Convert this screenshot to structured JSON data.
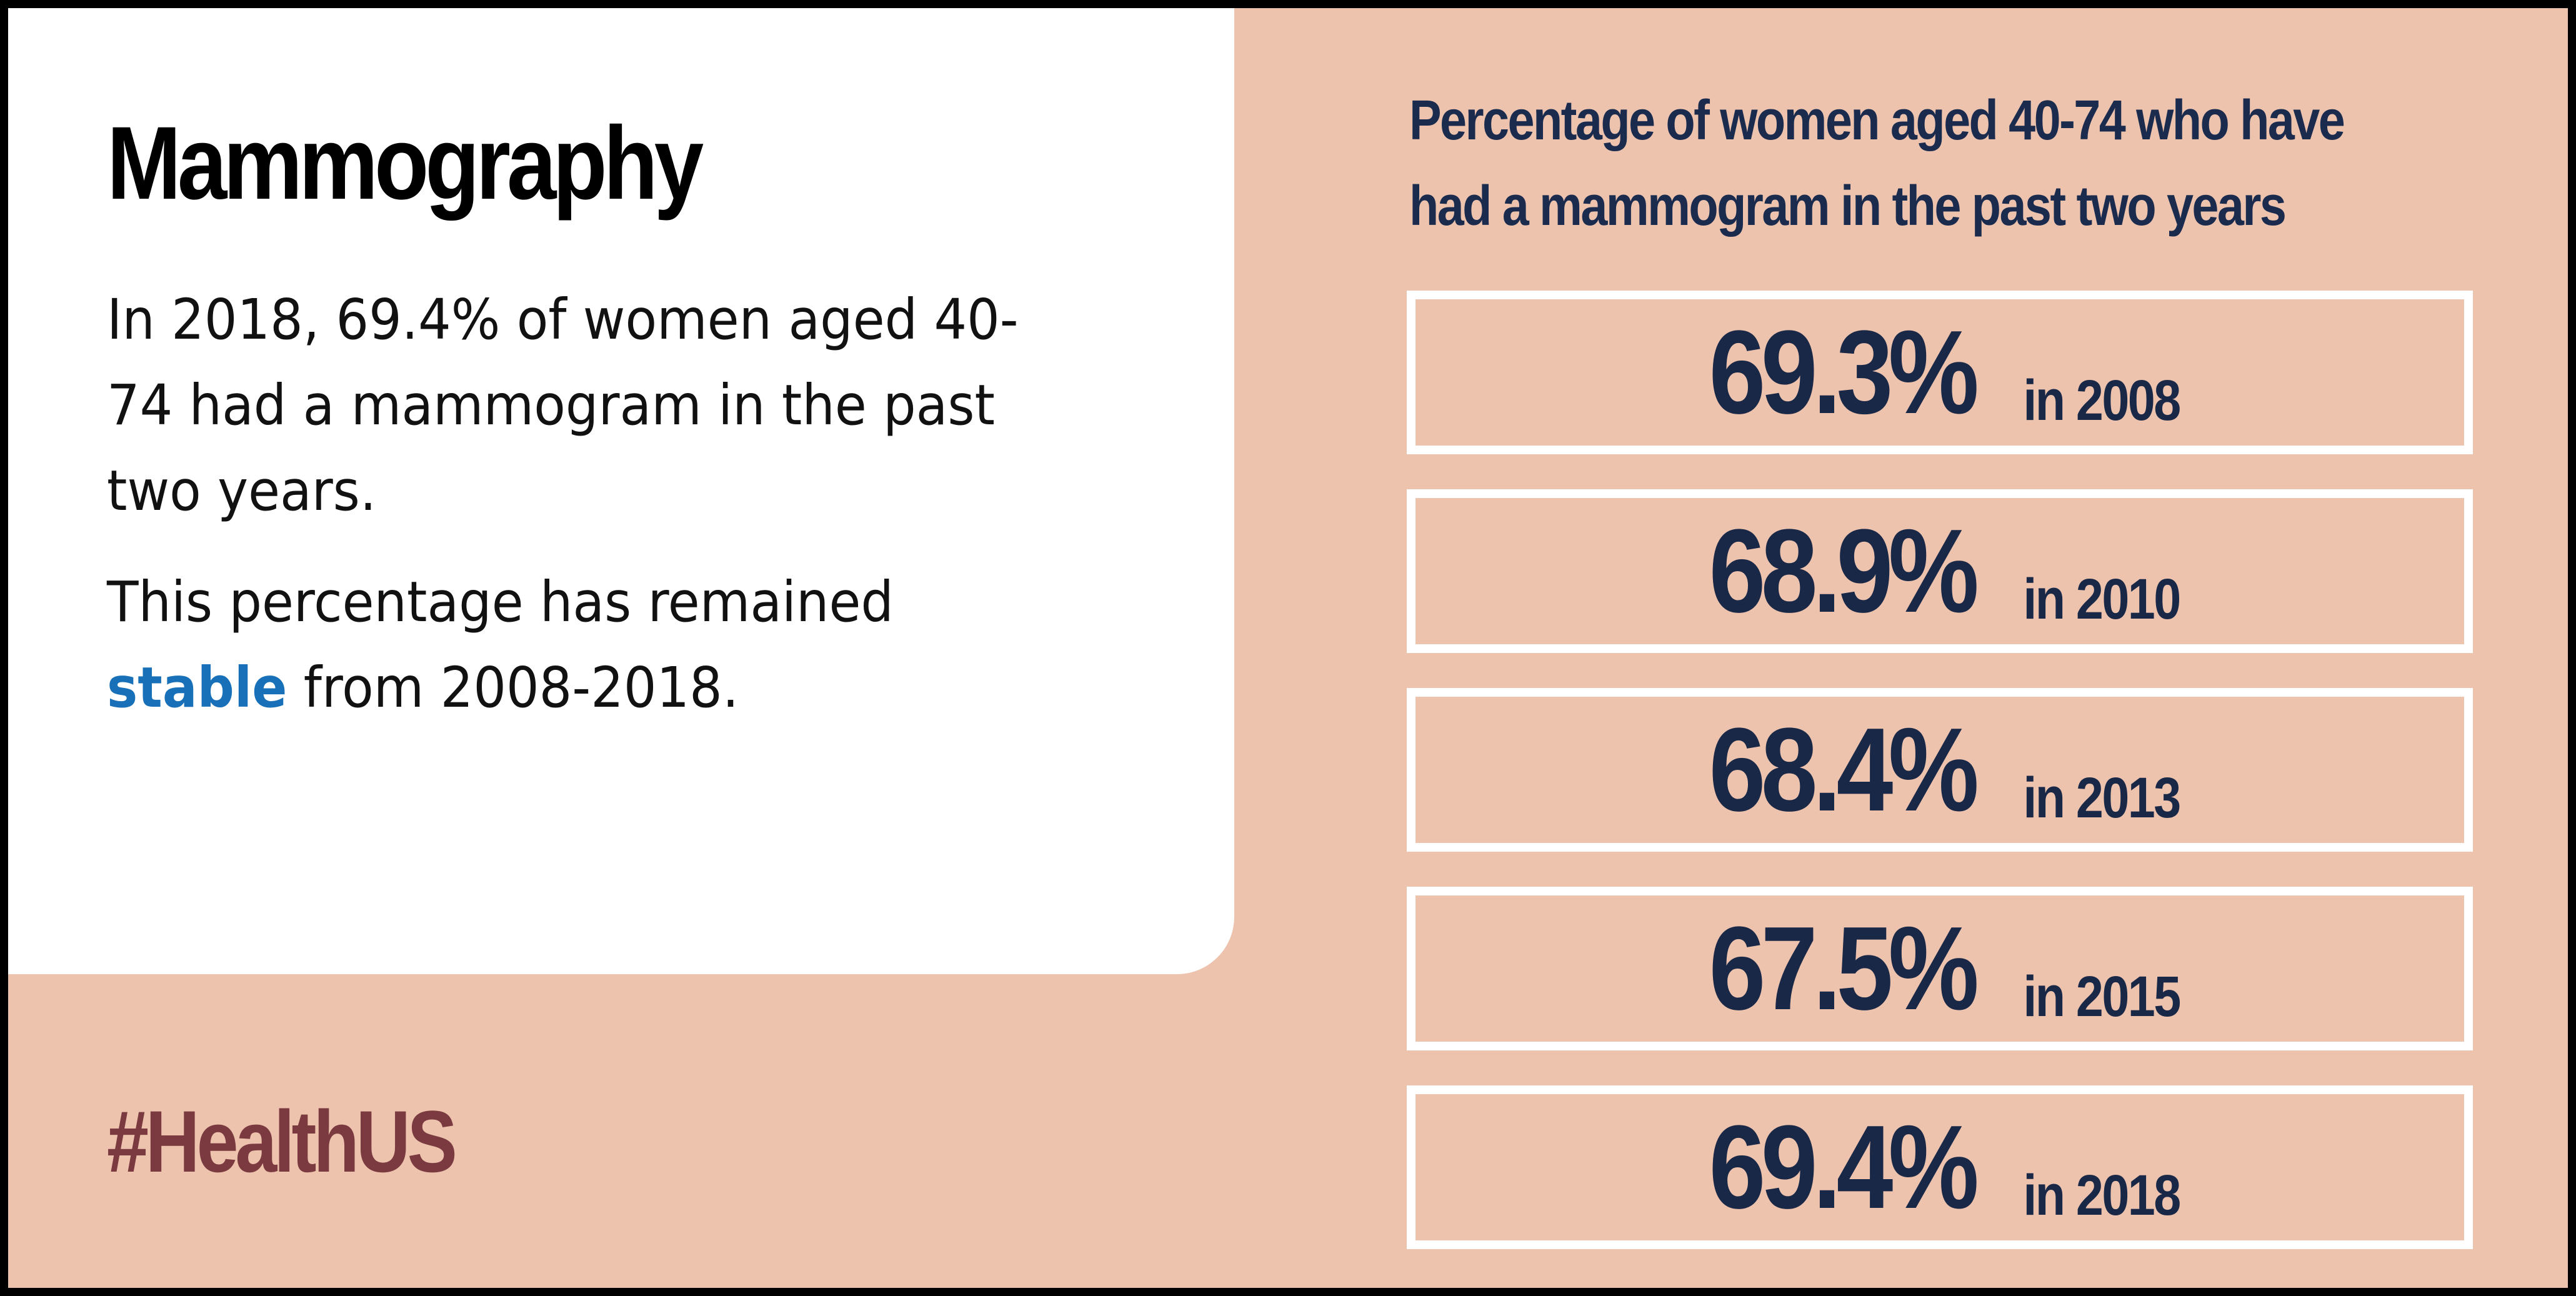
{
  "title": "Mammography",
  "paragraph1": "In 2018, 69.4% of women aged 40-74 had a mammogram in the past two years.",
  "paragraph2": {
    "before": "This percentage has remained ",
    "highlight": "stable",
    "after": " from 2008-2018."
  },
  "hashtag": "#HealthUS",
  "chart_title": "Percentage of women aged 40-74 who have had a mammogram in the past two years",
  "colors": {
    "background": "#edc3ae",
    "panel": "#ffffff",
    "highlight": "#1770b8",
    "hashtag": "#7a3a3f",
    "stat_text": "#1a2847"
  },
  "chart_data": {
    "type": "table",
    "title": "Percentage of women aged 40-74 who have had a mammogram in the past two years",
    "rows": [
      {
        "value": "69.3%",
        "year": "in 2008"
      },
      {
        "value": "68.9%",
        "year": "in 2010"
      },
      {
        "value": "68.4%",
        "year": "in 2013"
      },
      {
        "value": "67.5%",
        "year": "in 2015"
      },
      {
        "value": "69.4%",
        "year": "in 2018"
      }
    ]
  }
}
